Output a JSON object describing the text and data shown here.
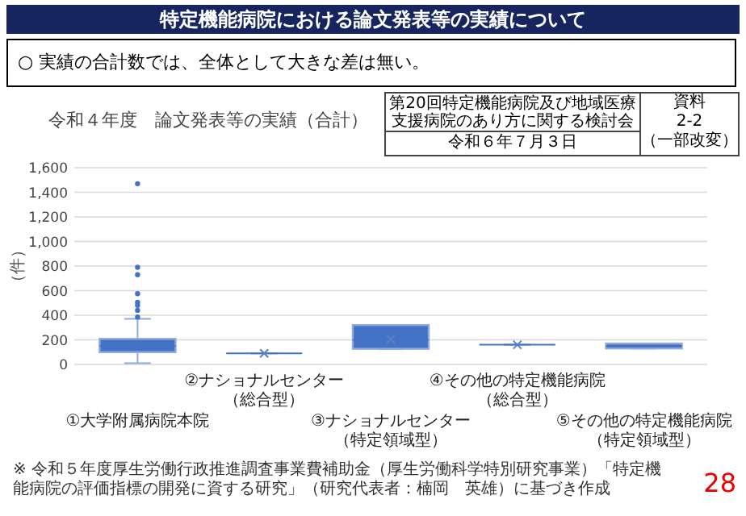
{
  "chart_data": {
    "type": "box",
    "title": "特定機能病院における論文発表等の実績について",
    "subtitle": "令和４年度　論文発表等の実績（合計）",
    "ylabel": "（件）",
    "annotations": [
      "○ 実績の合計数では、全体として大きな差は無い。",
      "第20回特定機能病院及び地域医療支援病院のあり方に関する検討会",
      "令和６年７月３日",
      "資料",
      "2-2",
      "（一部改変）",
      "※ 令和５年度厚生労働行政推進調査事業費補助金（厚生労働科学特別研究事業）「特定機能病院の評価指標の開発に資する研究」（研究代表者：楠岡　英雄）に基づき作成",
      "28"
    ],
    "categories": [
      "①大学附属病院本院",
      "②ナショナルセンター（総合型）",
      "③ナショナルセンター（特定領域型）",
      "④その他の特定機能病院（総合型）",
      "⑤その他の特定機能病院（特定領域型）"
    ],
    "series": [
      {
        "color": "#4472c4",
        "boxes": [
          {
            "low": 10,
            "q1": 100,
            "median": 150,
            "q3": 208,
            "high": 370,
            "outliers": [
              385,
              440,
              480,
              505,
              575,
              730,
              790,
              1470
            ]
          },
          {
            "low": 90,
            "q1": 90,
            "median": 90,
            "q3": 90,
            "high": 90,
            "mean": 90
          },
          {
            "low": 127,
            "q1": 127,
            "median": 200,
            "q3": 320,
            "high": 320,
            "mean": 205
          },
          {
            "low": 160,
            "q1": 160,
            "median": 160,
            "q3": 160,
            "high": 160,
            "mean": 160
          },
          {
            "low": 130,
            "q1": 130,
            "median": 150,
            "q3": 170,
            "high": 170
          }
        ]
      }
    ],
    "ylim": [
      0,
      1600
    ],
    "yticks": [
      0,
      200,
      400,
      600,
      800,
      {
        "value": 1000,
        "label": "1,000"
      },
      {
        "value": 1200,
        "label": "1,200"
      },
      {
        "value": 1400,
        "label": "1,400"
      },
      {
        "value": 1600,
        "label": "1,600"
      }
    ],
    "grid": "y"
  }
}
